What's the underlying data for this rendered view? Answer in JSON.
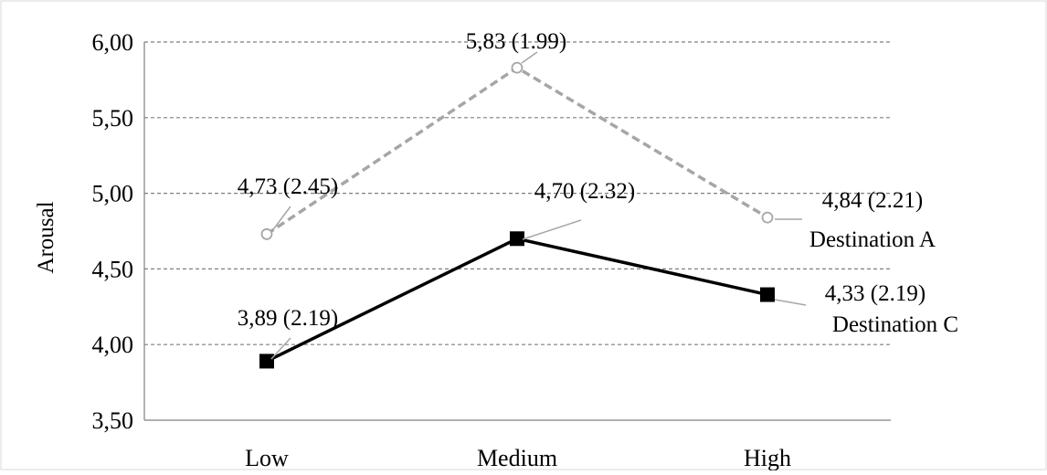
{
  "chart_data": {
    "type": "line",
    "categories": [
      "Low",
      "Medium",
      "High"
    ],
    "ylabel": "Arousal",
    "xlabel": "",
    "ylim": [
      3.5,
      6.0
    ],
    "yticks": [
      3.5,
      4.0,
      4.5,
      5.0,
      5.5,
      6.0
    ],
    "ytick_labels": [
      "3,50",
      "4,00",
      "4,50",
      "5,00",
      "5,50",
      "6,00"
    ],
    "grid": "horizontal-dashed",
    "series": [
      {
        "name": "Destination A",
        "values": [
          4.73,
          5.83,
          4.84
        ],
        "labels": [
          "4,73 (2.45)",
          "5,83 (1.99)",
          "4,84 (2.21)"
        ],
        "color": "#a6a6a6",
        "line_style": "dashed",
        "marker": "open-circle"
      },
      {
        "name": "Destination C",
        "values": [
          3.89,
          4.7,
          4.33
        ],
        "labels": [
          "3,89 (2.19)",
          "4,70 (2.32)",
          "4,33 (2.19)"
        ],
        "color": "#000000",
        "line_style": "solid",
        "marker": "filled-square"
      }
    ]
  }
}
